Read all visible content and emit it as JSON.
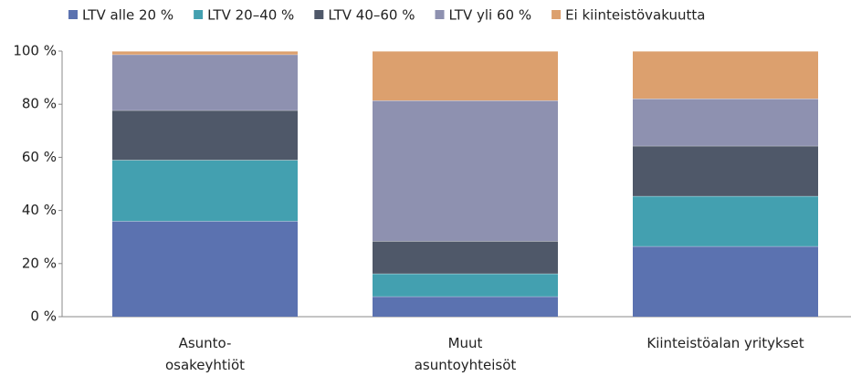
{
  "chart_data": {
    "type": "stacked_bar",
    "categories": [
      "Asunto-\nosakeyhtiöt",
      "Muut\nasuntoyhteisöt",
      "Kiinteistöalan yritykset"
    ],
    "series": [
      {
        "name": "LTV alle 20 %",
        "color": "#5b72b0",
        "values": [
          36,
          7.6,
          26.5
        ]
      },
      {
        "name": "LTV 20–40 %",
        "color": "#43a0b0",
        "values": [
          23,
          8.6,
          18.9
        ]
      },
      {
        "name": "LTV 40–60 %",
        "color": "#4f5869",
        "values": [
          18.7,
          12.3,
          18.9
        ]
      },
      {
        "name": "LTV yli 60 %",
        "color": "#8e91b0",
        "values": [
          21,
          52.9,
          17.8
        ]
      },
      {
        "name": "Ei kiinteistövakuutta",
        "color": "#dca06e",
        "values": [
          1.3,
          18.6,
          17.9
        ]
      }
    ],
    "ylim": [
      0,
      100
    ],
    "yticks": [
      {
        "value": 0,
        "label": "0 %"
      },
      {
        "value": 20,
        "label": "20 %"
      },
      {
        "value": 40,
        "label": "40 %"
      },
      {
        "value": 60,
        "label": "60 %"
      },
      {
        "value": 80,
        "label": "80 %"
      },
      {
        "value": 100,
        "label": "100 %"
      }
    ],
    "legend": "top"
  }
}
